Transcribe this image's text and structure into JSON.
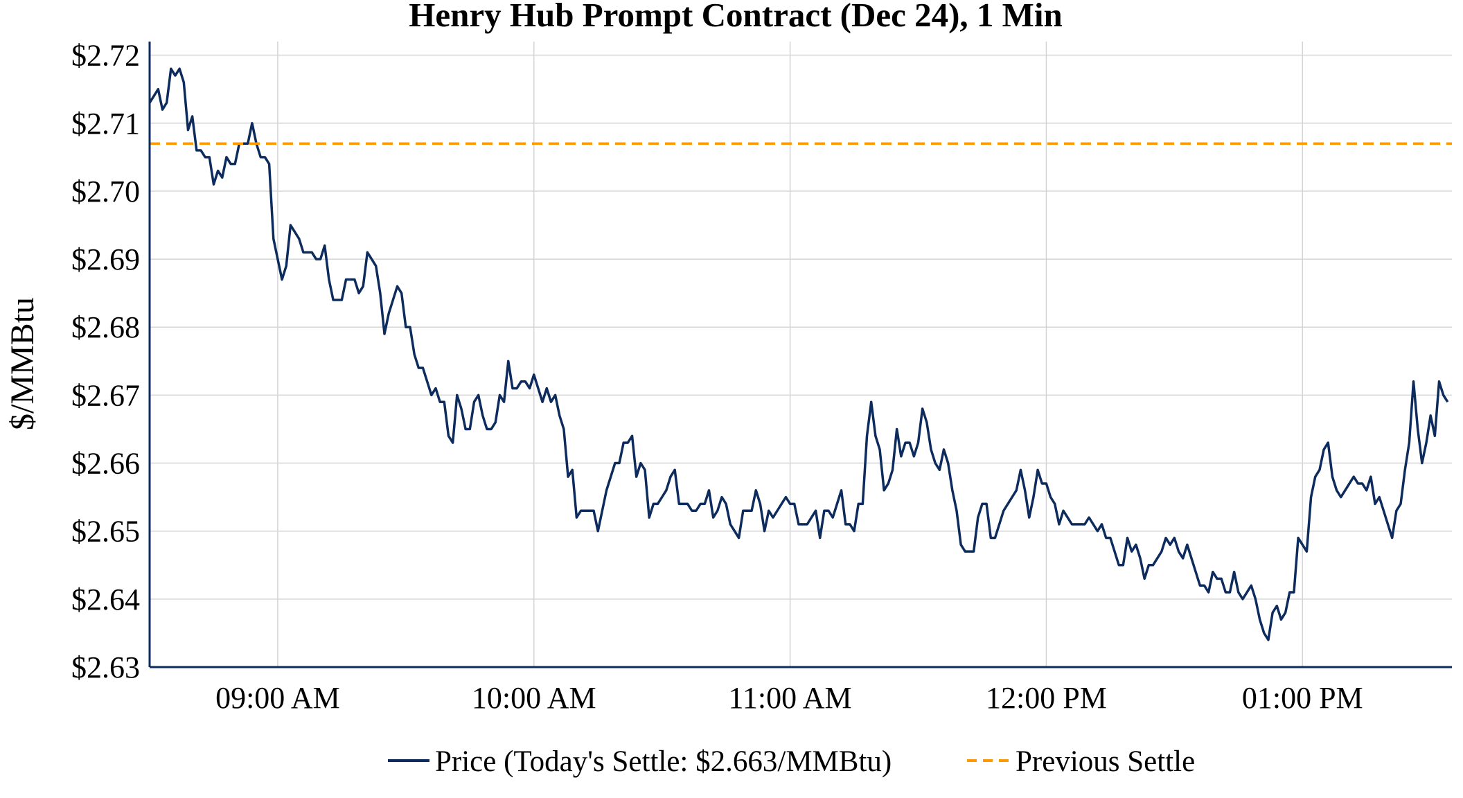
{
  "chart_data": {
    "type": "line",
    "title": "Henry Hub Prompt Contract (Dec 24), 1 Min",
    "xlabel": "",
    "ylabel": "$/MMBtu",
    "x_start_time": "08:30",
    "x_end_time": "13:35",
    "x_ticks": [
      {
        "time": "09:00",
        "label": "09:00 AM"
      },
      {
        "time": "10:00",
        "label": "10:00 AM"
      },
      {
        "time": "11:00",
        "label": "11:00 AM"
      },
      {
        "time": "12:00",
        "label": "12:00 PM"
      },
      {
        "time": "13:00",
        "label": "01:00 PM"
      }
    ],
    "ylim": [
      2.63,
      2.722
    ],
    "y_ticks": [
      {
        "value": 2.63,
        "label": "$2.63"
      },
      {
        "value": 2.64,
        "label": "$2.64"
      },
      {
        "value": 2.65,
        "label": "$2.65"
      },
      {
        "value": 2.66,
        "label": "$2.66"
      },
      {
        "value": 2.67,
        "label": "$2.67"
      },
      {
        "value": 2.68,
        "label": "$2.68"
      },
      {
        "value": 2.69,
        "label": "$2.69"
      },
      {
        "value": 2.7,
        "label": "$2.70"
      },
      {
        "value": 2.71,
        "label": "$2.71"
      },
      {
        "value": 2.72,
        "label": "$2.72"
      }
    ],
    "grid": true,
    "legend_placement": "bottom-center",
    "series": [
      {
        "name": "Price (Today's Settle: $2.663/MMBtu)",
        "color": "#0d2b5c",
        "style": "solid",
        "start_time": "08:30",
        "interval_minutes": 1,
        "values": [
          2.713,
          2.714,
          2.715,
          2.712,
          2.713,
          2.718,
          2.717,
          2.718,
          2.716,
          2.709,
          2.711,
          2.706,
          2.706,
          2.705,
          2.705,
          2.701,
          2.703,
          2.702,
          2.705,
          2.704,
          2.704,
          2.707,
          2.707,
          2.707,
          2.71,
          2.707,
          2.705,
          2.705,
          2.704,
          2.693,
          2.69,
          2.687,
          2.689,
          2.695,
          2.694,
          2.693,
          2.691,
          2.691,
          2.691,
          2.69,
          2.69,
          2.692,
          2.687,
          2.684,
          2.684,
          2.684,
          2.687,
          2.687,
          2.687,
          2.685,
          2.686,
          2.691,
          2.69,
          2.689,
          2.685,
          2.679,
          2.682,
          2.684,
          2.686,
          2.685,
          2.68,
          2.68,
          2.676,
          2.674,
          2.674,
          2.672,
          2.67,
          2.671,
          2.669,
          2.669,
          2.664,
          2.663,
          2.67,
          2.668,
          2.665,
          2.665,
          2.669,
          2.67,
          2.667,
          2.665,
          2.665,
          2.666,
          2.67,
          2.669,
          2.675,
          2.671,
          2.671,
          2.672,
          2.672,
          2.671,
          2.673,
          2.671,
          2.669,
          2.671,
          2.669,
          2.67,
          2.667,
          2.665,
          2.658,
          2.659,
          2.652,
          2.653,
          2.653,
          2.653,
          2.653,
          2.65,
          2.653,
          2.656,
          2.658,
          2.66,
          2.66,
          2.663,
          2.663,
          2.664,
          2.658,
          2.66,
          2.659,
          2.652,
          2.654,
          2.654,
          2.655,
          2.656,
          2.658,
          2.659,
          2.654,
          2.654,
          2.654,
          2.653,
          2.653,
          2.654,
          2.654,
          2.656,
          2.652,
          2.653,
          2.655,
          2.654,
          2.651,
          2.65,
          2.649,
          2.653,
          2.653,
          2.653,
          2.656,
          2.654,
          2.65,
          2.653,
          2.652,
          2.653,
          2.654,
          2.655,
          2.654,
          2.654,
          2.651,
          2.651,
          2.651,
          2.652,
          2.653,
          2.649,
          2.653,
          2.653,
          2.652,
          2.654,
          2.656,
          2.651,
          2.651,
          2.65,
          2.654,
          2.654,
          2.664,
          2.669,
          2.664,
          2.662,
          2.656,
          2.657,
          2.659,
          2.665,
          2.661,
          2.663,
          2.663,
          2.661,
          2.663,
          2.668,
          2.666,
          2.662,
          2.66,
          2.659,
          2.662,
          2.66,
          2.656,
          2.653,
          2.648,
          2.647,
          2.647,
          2.647,
          2.652,
          2.654,
          2.654,
          2.649,
          2.649,
          2.651,
          2.653,
          2.654,
          2.655,
          2.656,
          2.659,
          2.656,
          2.652,
          2.655,
          2.659,
          2.657,
          2.657,
          2.655,
          2.654,
          2.651,
          2.653,
          2.652,
          2.651,
          2.651,
          2.651,
          2.651,
          2.652,
          2.651,
          2.65,
          2.651,
          2.649,
          2.649,
          2.647,
          2.645,
          2.645,
          2.649,
          2.647,
          2.648,
          2.646,
          2.643,
          2.645,
          2.645,
          2.646,
          2.647,
          2.649,
          2.648,
          2.649,
          2.647,
          2.646,
          2.648,
          2.646,
          2.644,
          2.642,
          2.642,
          2.641,
          2.644,
          2.643,
          2.643,
          2.641,
          2.641,
          2.644,
          2.641,
          2.64,
          2.641,
          2.642,
          2.64,
          2.637,
          2.635,
          2.634,
          2.638,
          2.639,
          2.637,
          2.638,
          2.641,
          2.641,
          2.649,
          2.648,
          2.647,
          2.655,
          2.658,
          2.659,
          2.662,
          2.663,
          2.658,
          2.656,
          2.655,
          2.656,
          2.657,
          2.658,
          2.657,
          2.657,
          2.656,
          2.658,
          2.654,
          2.655,
          2.653,
          2.651,
          2.649,
          2.653,
          2.654,
          2.659,
          2.663,
          2.672,
          2.665,
          2.66,
          2.663,
          2.667,
          2.664,
          2.672,
          2.67,
          2.669
        ]
      },
      {
        "name": "Previous Settle",
        "color": "#ff9900",
        "style": "dashed",
        "constant_value": 2.707
      }
    ]
  }
}
